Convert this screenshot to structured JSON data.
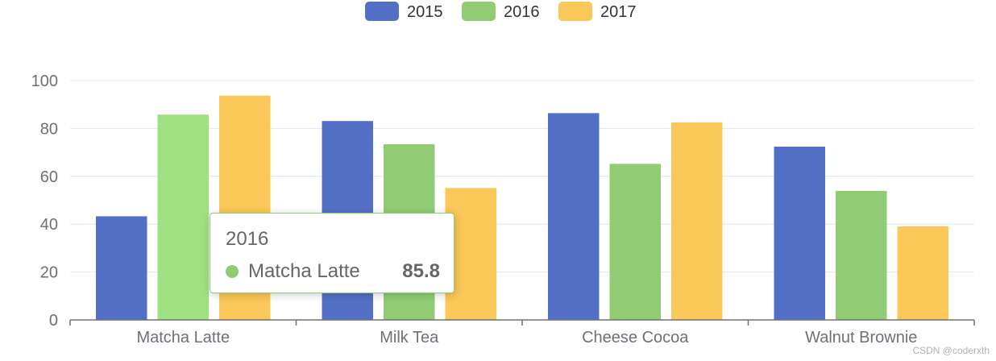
{
  "chart_data": {
    "type": "bar",
    "categories": [
      "Matcha Latte",
      "Milk Tea",
      "Cheese Cocoa",
      "Walnut Brownie"
    ],
    "series": [
      {
        "name": "2015",
        "color": "#5470c6",
        "values": [
          43.3,
          83.1,
          86.4,
          72.4
        ]
      },
      {
        "name": "2016",
        "color": "#91cc75",
        "values": [
          85.8,
          73.4,
          65.2,
          53.9
        ]
      },
      {
        "name": "2017",
        "color": "#fac858",
        "values": [
          93.7,
          55.1,
          82.5,
          39.1
        ]
      }
    ],
    "ylim": [
      0,
      100
    ],
    "yticks": [
      "0",
      "20",
      "40",
      "60",
      "80",
      "100"
    ],
    "grid": true,
    "legend_position": "top-center"
  },
  "tooltip": {
    "title": "2016",
    "name": "Matcha Latte",
    "value": "85.8",
    "color": "#91cc75"
  },
  "watermark": "CSDN @coderxth"
}
